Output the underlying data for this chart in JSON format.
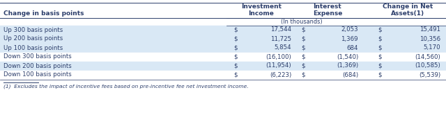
{
  "title_left": "Change in basis points",
  "col_headers": [
    "Investment\nIncome",
    "Interest\nExpense",
    "Change in Net\nAssets(1)"
  ],
  "subheader": "(In thousands)",
  "rows": [
    [
      "Up 300 basis points",
      "$",
      "17,544",
      "$",
      "2,053",
      "$",
      "15,491"
    ],
    [
      "Up 200 basis points",
      "$",
      "11,725",
      "$",
      "1,369",
      "$",
      "10,356"
    ],
    [
      "Up 100 basis points",
      "$",
      "5,854",
      "$",
      "684",
      "$",
      "5,170"
    ],
    [
      "Down 300 basis points",
      "$",
      "(16,100)",
      "$",
      "(1,540)",
      "$",
      "(14,560)"
    ],
    [
      "Down 200 basis points",
      "$",
      "(11,954)",
      "$",
      "(1,369)",
      "$",
      "(10,585)"
    ],
    [
      "Down 100 basis points",
      "$",
      "(6,223)",
      "$",
      "(684)",
      "$",
      "(5,539)"
    ]
  ],
  "footnote": "(1)  Excludes the impact of incentive fees based on pre-incentive fee net investment income.",
  "row_colors": [
    "#d9e8f5",
    "#d9e8f5",
    "#d9e8f5",
    "#ffffff",
    "#d9e8f5",
    "#ffffff"
  ],
  "text_color": "#2c3e6b",
  "line_color": "#2c3e6b",
  "font_size": 6.2,
  "header_font_size": 6.5,
  "fig_width": 6.4,
  "fig_height": 1.66,
  "dpi": 100
}
